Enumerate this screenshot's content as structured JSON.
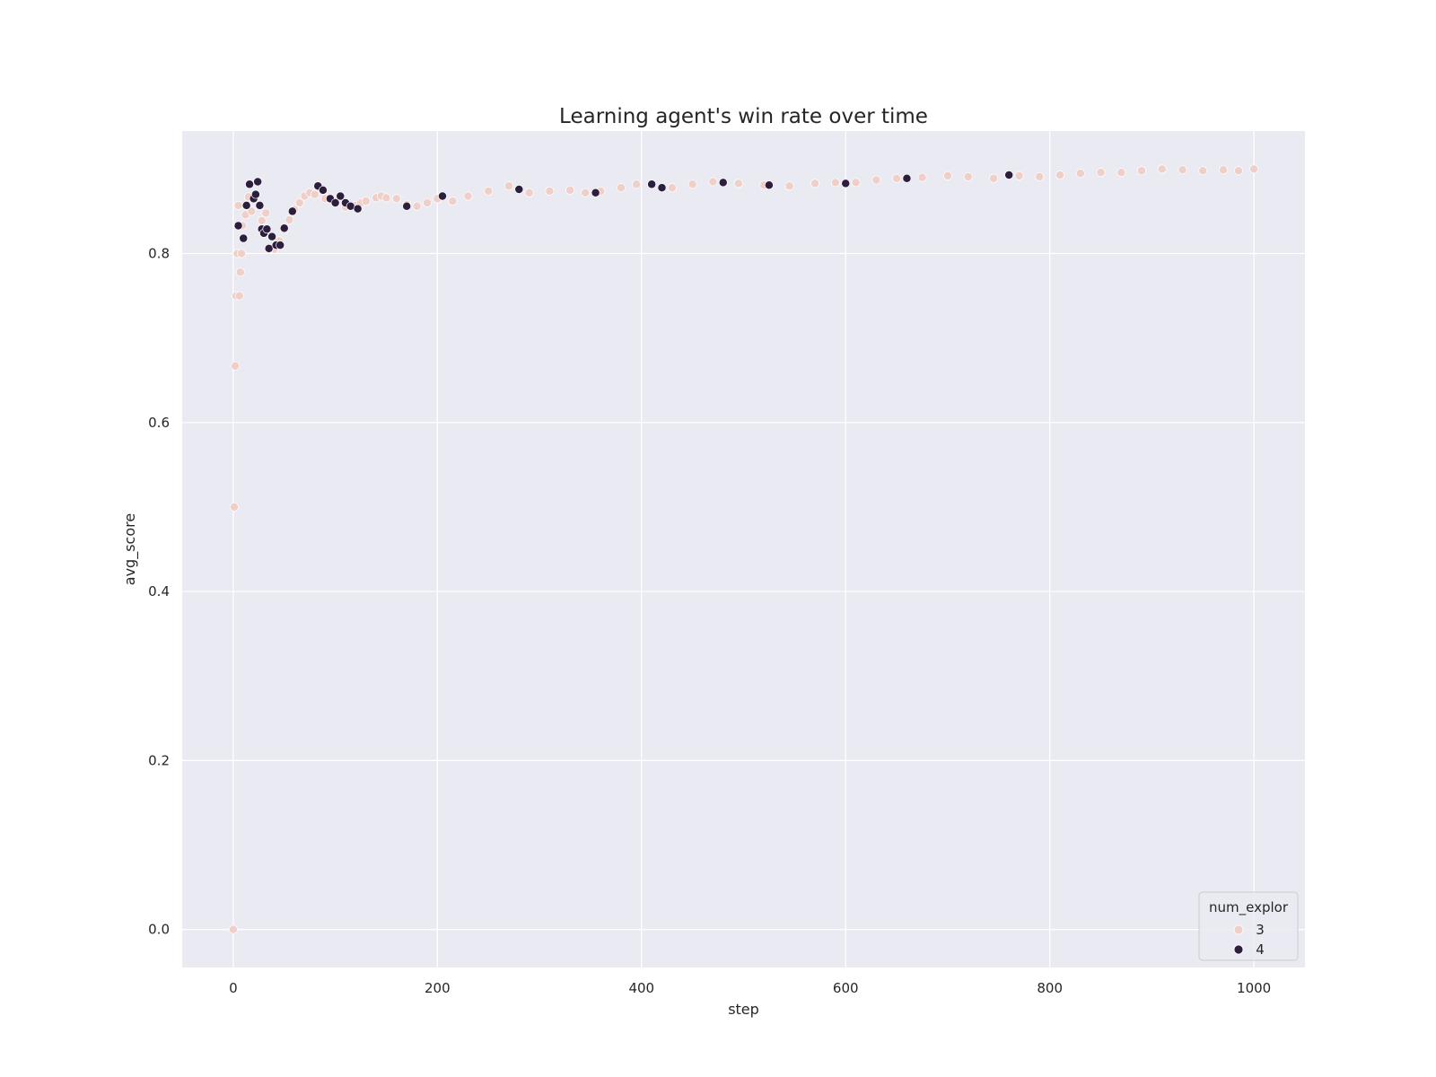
{
  "chart_data": {
    "type": "scatter",
    "title": "Learning agent's win rate over time",
    "xlabel": "step",
    "ylabel": "avg_score",
    "xlim": [
      -50,
      1050
    ],
    "ylim": [
      -0.045,
      0.945
    ],
    "xticks": [
      0,
      200,
      400,
      600,
      800,
      1000
    ],
    "xtick_labels": [
      "0",
      "200",
      "400",
      "600",
      "800",
      "1000"
    ],
    "yticks": [
      0.0,
      0.2,
      0.4,
      0.6,
      0.8
    ],
    "ytick_labels": [
      "0.0",
      "0.2",
      "0.4",
      "0.6",
      "0.8"
    ],
    "grid": true,
    "legend": {
      "title": "num_explor",
      "placement": "bottom-right"
    },
    "series": [
      {
        "name": "3",
        "color": "#efcfc7",
        "x": [
          0,
          1,
          2,
          3,
          4,
          5,
          6,
          7,
          8,
          9,
          12,
          15,
          18,
          22,
          28,
          32,
          40,
          45,
          50,
          55,
          60,
          65,
          70,
          75,
          80,
          90,
          100,
          110,
          120,
          125,
          130,
          140,
          145,
          150,
          160,
          170,
          180,
          190,
          200,
          215,
          230,
          250,
          270,
          290,
          310,
          330,
          345,
          360,
          380,
          395,
          430,
          450,
          470,
          495,
          520,
          545,
          570,
          590,
          610,
          630,
          650,
          675,
          700,
          720,
          745,
          770,
          790,
          810,
          830,
          850,
          870,
          890,
          910,
          930,
          950,
          970,
          985,
          1000
        ],
        "y": [
          0.0,
          0.5,
          0.667,
          0.75,
          0.8,
          0.857,
          0.75,
          0.778,
          0.8,
          0.833,
          0.846,
          0.867,
          0.85,
          0.87,
          0.839,
          0.848,
          0.805,
          0.815,
          0.828,
          0.84,
          0.852,
          0.86,
          0.868,
          0.872,
          0.87,
          0.865,
          0.862,
          0.855,
          0.857,
          0.86,
          0.862,
          0.866,
          0.868,
          0.866,
          0.865,
          0.858,
          0.856,
          0.86,
          0.865,
          0.862,
          0.868,
          0.874,
          0.88,
          0.872,
          0.874,
          0.875,
          0.872,
          0.874,
          0.878,
          0.882,
          0.878,
          0.882,
          0.885,
          0.883,
          0.881,
          0.88,
          0.883,
          0.884,
          0.884,
          0.887,
          0.889,
          0.89,
          0.892,
          0.891,
          0.889,
          0.892,
          0.891,
          0.893,
          0.895,
          0.896,
          0.896,
          0.898,
          0.9,
          0.899,
          0.898,
          0.899,
          0.898,
          0.9
        ]
      },
      {
        "name": "4",
        "color": "#2d1e3e",
        "x": [
          5,
          10,
          13,
          16,
          20,
          22,
          24,
          26,
          28,
          30,
          33,
          35,
          38,
          42,
          46,
          50,
          58,
          83,
          88,
          95,
          100,
          105,
          110,
          115,
          122,
          170,
          205,
          280,
          355,
          410,
          420,
          480,
          525,
          600,
          660,
          760
        ],
        "y": [
          0.833,
          0.818,
          0.857,
          0.882,
          0.865,
          0.87,
          0.885,
          0.857,
          0.829,
          0.824,
          0.829,
          0.806,
          0.82,
          0.81,
          0.81,
          0.83,
          0.85,
          0.88,
          0.875,
          0.865,
          0.86,
          0.868,
          0.86,
          0.856,
          0.853,
          0.856,
          0.868,
          0.876,
          0.872,
          0.882,
          0.878,
          0.884,
          0.881,
          0.883,
          0.889,
          0.893
        ]
      }
    ]
  }
}
